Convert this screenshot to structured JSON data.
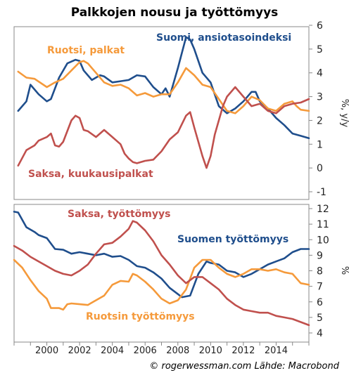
{
  "title": "Palkkojen nousu ja työttömyys",
  "footer": "© rogerwessman.com Lähde: Macrobond",
  "colors": {
    "suomi": "#1f4e8c",
    "ruotsi": "#f59a3b",
    "saksa": "#c0504d"
  },
  "chart_data": [
    {
      "type": "line",
      "ylabel": "%, y/y",
      "ylim": [
        -1,
        6
      ],
      "xlim": [
        1998,
        2016
      ],
      "yticks": [
        -1,
        0,
        1,
        2,
        3,
        4,
        5,
        6
      ],
      "grid": false,
      "series": [
        {
          "name": "Suomi, ansiotasoindeksi",
          "color_key": "suomi",
          "points": [
            [
              1998.25,
              2.4
            ],
            [
              1998.75,
              2.8
            ],
            [
              1999.0,
              3.5
            ],
            [
              1999.5,
              3.1
            ],
            [
              2000.0,
              2.8
            ],
            [
              2000.25,
              2.9
            ],
            [
              2000.75,
              3.8
            ],
            [
              2001.25,
              4.4
            ],
            [
              2001.75,
              4.55
            ],
            [
              2002.0,
              4.5
            ],
            [
              2002.25,
              4.1
            ],
            [
              2002.75,
              3.7
            ],
            [
              2003.25,
              3.9
            ],
            [
              2003.5,
              3.85
            ],
            [
              2004.0,
              3.6
            ],
            [
              2004.5,
              3.65
            ],
            [
              2005.0,
              3.7
            ],
            [
              2005.5,
              3.9
            ],
            [
              2006.0,
              3.85
            ],
            [
              2006.5,
              3.4
            ],
            [
              2007.0,
              3.1
            ],
            [
              2007.25,
              3.35
            ],
            [
              2007.5,
              3.0
            ],
            [
              2008.0,
              4.2
            ],
            [
              2008.5,
              5.5
            ],
            [
              2008.75,
              5.4
            ],
            [
              2009.0,
              5.0
            ],
            [
              2009.5,
              4.0
            ],
            [
              2010.0,
              3.6
            ],
            [
              2010.5,
              2.6
            ],
            [
              2011.0,
              2.3
            ],
            [
              2011.5,
              2.5
            ],
            [
              2012.0,
              2.8
            ],
            [
              2012.5,
              3.2
            ],
            [
              2012.75,
              3.2
            ],
            [
              2013.0,
              2.8
            ],
            [
              2013.5,
              2.5
            ],
            [
              2014.0,
              2.1
            ],
            [
              2014.5,
              1.8
            ],
            [
              2015.0,
              1.45
            ],
            [
              2015.5,
              1.35
            ],
            [
              2016.0,
              1.25
            ]
          ]
        },
        {
          "name": "Ruotsi, palkat",
          "color_key": "ruotsi",
          "points": [
            [
              1998.25,
              4.05
            ],
            [
              1998.75,
              3.8
            ],
            [
              1999.25,
              3.75
            ],
            [
              2000.0,
              3.4
            ],
            [
              2000.5,
              3.6
            ],
            [
              2001.0,
              3.75
            ],
            [
              2001.5,
              4.1
            ],
            [
              2002.0,
              4.45
            ],
            [
              2002.25,
              4.5
            ],
            [
              2002.5,
              4.4
            ],
            [
              2003.0,
              4.0
            ],
            [
              2003.5,
              3.6
            ],
            [
              2004.0,
              3.45
            ],
            [
              2004.5,
              3.5
            ],
            [
              2005.0,
              3.35
            ],
            [
              2005.5,
              3.05
            ],
            [
              2006.0,
              3.15
            ],
            [
              2006.5,
              3.0
            ],
            [
              2007.0,
              3.1
            ],
            [
              2007.5,
              3.1
            ],
            [
              2008.0,
              3.6
            ],
            [
              2008.5,
              4.2
            ],
            [
              2009.0,
              3.9
            ],
            [
              2009.5,
              3.5
            ],
            [
              2010.0,
              3.4
            ],
            [
              2010.5,
              2.9
            ],
            [
              2011.0,
              2.4
            ],
            [
              2011.5,
              2.3
            ],
            [
              2012.0,
              2.6
            ],
            [
              2012.5,
              3.0
            ],
            [
              2013.0,
              2.85
            ],
            [
              2013.5,
              2.5
            ],
            [
              2014.0,
              2.4
            ],
            [
              2014.5,
              2.7
            ],
            [
              2015.0,
              2.8
            ],
            [
              2015.25,
              2.6
            ],
            [
              2015.5,
              2.45
            ],
            [
              2016.0,
              2.4
            ]
          ]
        },
        {
          "name": "Saksa, kuukausipalkat",
          "color_key": "saksa",
          "points": [
            [
              1998.25,
              0.1
            ],
            [
              1998.75,
              0.75
            ],
            [
              1999.25,
              0.95
            ],
            [
              1999.5,
              1.15
            ],
            [
              2000.0,
              1.3
            ],
            [
              2000.25,
              1.45
            ],
            [
              2000.5,
              0.95
            ],
            [
              2000.75,
              0.9
            ],
            [
              2001.0,
              1.1
            ],
            [
              2001.5,
              2.0
            ],
            [
              2001.75,
              2.2
            ],
            [
              2002.0,
              2.1
            ],
            [
              2002.25,
              1.6
            ],
            [
              2002.5,
              1.55
            ],
            [
              2003.0,
              1.3
            ],
            [
              2003.5,
              1.6
            ],
            [
              2004.0,
              1.3
            ],
            [
              2004.5,
              1.0
            ],
            [
              2004.75,
              0.6
            ],
            [
              2005.0,
              0.4
            ],
            [
              2005.25,
              0.25
            ],
            [
              2005.5,
              0.2
            ],
            [
              2006.0,
              0.3
            ],
            [
              2006.5,
              0.35
            ],
            [
              2007.0,
              0.7
            ],
            [
              2007.5,
              1.2
            ],
            [
              2008.0,
              1.5
            ],
            [
              2008.5,
              2.2
            ],
            [
              2008.75,
              2.35
            ],
            [
              2009.0,
              1.7
            ],
            [
              2009.5,
              0.5
            ],
            [
              2009.75,
              0.0
            ],
            [
              2010.0,
              0.5
            ],
            [
              2010.25,
              1.4
            ],
            [
              2010.75,
              2.6
            ],
            [
              2011.0,
              3.0
            ],
            [
              2011.5,
              3.4
            ],
            [
              2012.0,
              3.0
            ],
            [
              2012.5,
              2.6
            ],
            [
              2013.0,
              2.7
            ],
            [
              2013.5,
              2.4
            ],
            [
              2014.0,
              2.3
            ],
            [
              2014.5,
              2.6
            ],
            [
              2015.0,
              2.7
            ],
            [
              2015.5,
              2.75
            ],
            [
              2016.0,
              2.9
            ]
          ]
        }
      ],
      "annotations": [
        {
          "text": "Suomi, ansiotasoindeksi",
          "color_key": "suomi"
        },
        {
          "text": "Ruotsi, palkat",
          "color_key": "ruotsi"
        },
        {
          "text": "Saksa, kuukausipalkat",
          "color_key": "saksa"
        }
      ]
    },
    {
      "type": "line",
      "ylabel": "%",
      "ylim": [
        4,
        12
      ],
      "xlim": [
        1998,
        2016
      ],
      "yticks": [
        4,
        5,
        6,
        7,
        8,
        9,
        10,
        11,
        12
      ],
      "xticks": [
        "2000",
        "2002",
        "2004",
        "2006",
        "2008",
        "2010",
        "2012",
        "2014"
      ],
      "grid": false,
      "series": [
        {
          "name": "Suomen työttömyys",
          "color_key": "suomi",
          "points": [
            [
              1998.0,
              11.8
            ],
            [
              1998.25,
              11.75
            ],
            [
              1998.75,
              10.8
            ],
            [
              1999.25,
              10.5
            ],
            [
              1999.5,
              10.3
            ],
            [
              2000.0,
              10.1
            ],
            [
              2000.5,
              9.4
            ],
            [
              2001.0,
              9.35
            ],
            [
              2001.5,
              9.1
            ],
            [
              2002.0,
              9.2
            ],
            [
              2002.5,
              9.1
            ],
            [
              2003.0,
              9.0
            ],
            [
              2003.5,
              9.1
            ],
            [
              2004.0,
              8.9
            ],
            [
              2004.5,
              8.95
            ],
            [
              2005.0,
              8.7
            ],
            [
              2005.5,
              8.3
            ],
            [
              2006.0,
              8.2
            ],
            [
              2006.5,
              7.9
            ],
            [
              2007.0,
              7.5
            ],
            [
              2007.5,
              6.9
            ],
            [
              2008.0,
              6.5
            ],
            [
              2008.25,
              6.3
            ],
            [
              2008.75,
              6.4
            ],
            [
              2009.25,
              7.8
            ],
            [
              2009.75,
              8.6
            ],
            [
              2010.0,
              8.5
            ],
            [
              2010.5,
              8.4
            ],
            [
              2011.0,
              8.0
            ],
            [
              2011.5,
              7.9
            ],
            [
              2012.0,
              7.6
            ],
            [
              2012.5,
              7.8
            ],
            [
              2013.0,
              8.1
            ],
            [
              2013.5,
              8.4
            ],
            [
              2014.0,
              8.6
            ],
            [
              2014.5,
              8.8
            ],
            [
              2015.0,
              9.2
            ],
            [
              2015.5,
              9.4
            ],
            [
              2016.0,
              9.4
            ]
          ]
        },
        {
          "name": "Ruotsin työttömyys",
          "color_key": "ruotsi",
          "points": [
            [
              1998.0,
              8.7
            ],
            [
              1998.5,
              8.2
            ],
            [
              1999.0,
              7.4
            ],
            [
              1999.5,
              6.7
            ],
            [
              2000.0,
              6.2
            ],
            [
              2000.25,
              5.6
            ],
            [
              2000.75,
              5.6
            ],
            [
              2001.0,
              5.5
            ],
            [
              2001.25,
              5.85
            ],
            [
              2001.5,
              5.9
            ],
            [
              2002.0,
              5.85
            ],
            [
              2002.5,
              5.8
            ],
            [
              2003.0,
              6.1
            ],
            [
              2003.5,
              6.4
            ],
            [
              2004.0,
              7.1
            ],
            [
              2004.5,
              7.35
            ],
            [
              2005.0,
              7.3
            ],
            [
              2005.25,
              7.8
            ],
            [
              2005.5,
              7.7
            ],
            [
              2006.0,
              7.3
            ],
            [
              2006.5,
              6.8
            ],
            [
              2007.0,
              6.2
            ],
            [
              2007.5,
              5.9
            ],
            [
              2008.0,
              6.1
            ],
            [
              2008.5,
              6.8
            ],
            [
              2009.0,
              8.2
            ],
            [
              2009.5,
              8.7
            ],
            [
              2010.0,
              8.7
            ],
            [
              2010.5,
              8.2
            ],
            [
              2011.0,
              7.8
            ],
            [
              2011.5,
              7.6
            ],
            [
              2012.0,
              7.8
            ],
            [
              2012.5,
              8.1
            ],
            [
              2013.0,
              8.1
            ],
            [
              2013.5,
              8.0
            ],
            [
              2014.0,
              8.1
            ],
            [
              2014.5,
              7.9
            ],
            [
              2015.0,
              7.8
            ],
            [
              2015.5,
              7.2
            ],
            [
              2016.0,
              7.1
            ]
          ]
        },
        {
          "name": "Saksa, työttömyys",
          "color_key": "saksa",
          "points": [
            [
              1998.0,
              9.6
            ],
            [
              1998.5,
              9.3
            ],
            [
              1999.0,
              8.9
            ],
            [
              1999.5,
              8.6
            ],
            [
              2000.0,
              8.3
            ],
            [
              2000.5,
              8.0
            ],
            [
              2001.0,
              7.8
            ],
            [
              2001.5,
              7.7
            ],
            [
              2002.0,
              8.0
            ],
            [
              2002.5,
              8.4
            ],
            [
              2003.0,
              9.1
            ],
            [
              2003.5,
              9.7
            ],
            [
              2004.0,
              9.8
            ],
            [
              2004.5,
              10.2
            ],
            [
              2005.0,
              10.7
            ],
            [
              2005.25,
              11.2
            ],
            [
              2005.5,
              11.1
            ],
            [
              2006.0,
              10.6
            ],
            [
              2006.5,
              9.9
            ],
            [
              2007.0,
              9.0
            ],
            [
              2007.5,
              8.4
            ],
            [
              2008.0,
              7.7
            ],
            [
              2008.5,
              7.2
            ],
            [
              2009.0,
              7.6
            ],
            [
              2009.5,
              7.6
            ],
            [
              2010.0,
              7.2
            ],
            [
              2010.5,
              6.8
            ],
            [
              2011.0,
              6.2
            ],
            [
              2011.5,
              5.8
            ],
            [
              2012.0,
              5.5
            ],
            [
              2012.5,
              5.4
            ],
            [
              2013.0,
              5.3
            ],
            [
              2013.5,
              5.3
            ],
            [
              2014.0,
              5.1
            ],
            [
              2014.5,
              5.0
            ],
            [
              2015.0,
              4.9
            ],
            [
              2015.5,
              4.7
            ],
            [
              2016.0,
              4.5
            ]
          ]
        }
      ],
      "annotations": [
        {
          "text": "Saksa, työttömyys",
          "color_key": "saksa"
        },
        {
          "text": "Suomen työttömyys",
          "color_key": "suomi"
        },
        {
          "text": "Ruotsin työttömyys",
          "color_key": "ruotsi"
        }
      ]
    }
  ]
}
